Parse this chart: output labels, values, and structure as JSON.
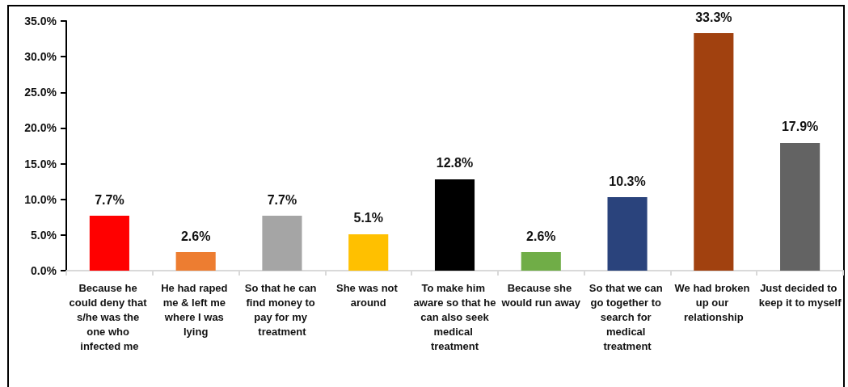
{
  "chart_data": {
    "type": "bar",
    "categories": [
      "Because he could deny that s/he was the one who infected me",
      "He had raped me & left me where I was lying",
      "So that he can find money to pay for my treatment",
      "She was not around",
      "To make him aware so that he can also seek medical treatment",
      "Because she would run away",
      "So that we can go together to search for medical treatment",
      "We had broken up our relationship",
      "Just decided to keep it to myself"
    ],
    "values": [
      7.7,
      2.6,
      7.7,
      5.1,
      12.8,
      2.6,
      10.3,
      33.3,
      17.9
    ],
    "colors": [
      "#ff0000",
      "#ed7d31",
      "#a5a5a5",
      "#ffc000",
      "#000000",
      "#70ad47",
      "#2a437c",
      "#a1410f",
      "#636363"
    ],
    "value_labels": [
      "7.7%",
      "2.6%",
      "7.7%",
      "5.1%",
      "12.8%",
      "2.6%",
      "10.3%",
      "33.3%",
      "17.9%"
    ],
    "ylim": [
      0,
      35
    ],
    "yticks": [
      {
        "value": 0,
        "label": "0.0%"
      },
      {
        "value": 5,
        "label": "5.0%"
      },
      {
        "value": 10,
        "label": "10.0%"
      },
      {
        "value": 15,
        "label": "15.0%"
      },
      {
        "value": 20,
        "label": "20.0%"
      },
      {
        "value": 25,
        "label": "25.0%"
      },
      {
        "value": 30,
        "label": "30.0%"
      },
      {
        "value": 35,
        "label": "35.0%"
      }
    ]
  }
}
